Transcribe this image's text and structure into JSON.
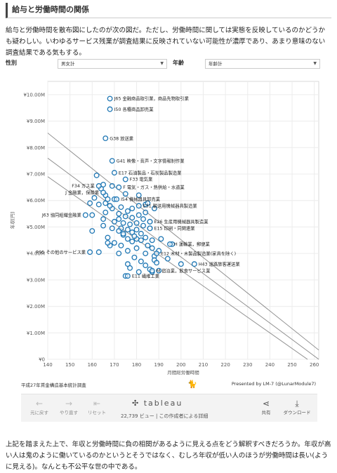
{
  "heading": "給与と労働時間の関係",
  "intro": "給与と労働時間を散布図にしたのが次の図だ。ただし、労働時間に関しては実態を反映しているのかどうかも疑わしい。いわゆるサービス残業が調査結果に反映されていない可能性が濃厚であり、あまり意味のない調査結果である気もする。",
  "filters": {
    "gender_label": "性別",
    "gender_value": "男女計",
    "age_label": "年齢",
    "age_value": "年齢計"
  },
  "chart_data": {
    "type": "scatter",
    "xlabel": "月間総労働時間",
    "ylabel": "年収[円]",
    "xlim": [
      140,
      262
    ],
    "ylim": [
      0,
      10.5
    ],
    "x_ticks": [
      "140",
      "150",
      "160",
      "170",
      "180",
      "190",
      "200",
      "210",
      "220",
      "230",
      "240",
      "250",
      "260"
    ],
    "y_ticks": [
      "¥0",
      "¥1.00M",
      "¥2.00M",
      "¥3.00M",
      "¥4.00M",
      "¥5.00M",
      "¥6.00M",
      "¥7.00M",
      "¥8.00M",
      "¥9.00M",
      "¥10.00M"
    ],
    "marker_color": "#1f77b4",
    "labeled_points": [
      {
        "label": "J65 金融商品取引業，商品先物取引業",
        "x": 168,
        "y": 9.85
      },
      {
        "label": "I50 各種商品卸売業",
        "x": 168,
        "y": 9.45
      },
      {
        "label": "G38 放送業",
        "x": 166,
        "y": 8.35
      },
      {
        "label": "G41 映像・音声・文字情報制作業",
        "x": 169,
        "y": 7.5
      },
      {
        "label": "E17 石油製品・石炭製品製造業",
        "x": 170,
        "y": 7.05
      },
      {
        "label": "F33 電気業",
        "x": 175,
        "y": 6.8
      },
      {
        "label": "F 電気・ガス・熱供給・水道業",
        "x": 172,
        "y": 6.5
      },
      {
        "label": "F34 ガス業",
        "x": 163,
        "y": 6.55
      },
      {
        "label": "J 金融業，保険業",
        "x": 165,
        "y": 6.3
      },
      {
        "label": "I54 機械器具卸売業",
        "x": 171,
        "y": 6.05
      },
      {
        "label": "E31 輸送用機械器具製造業",
        "x": 181,
        "y": 5.8
      },
      {
        "label": "J63 協同組織金融業",
        "x": 157,
        "y": 5.45
      },
      {
        "label": "E26 生産用機械器具製造業",
        "x": 186,
        "y": 5.2
      },
      {
        "label": "E15 印刷・同関連業",
        "x": 186,
        "y": 4.95
      },
      {
        "label": "H 運輸業，郵便業",
        "x": 195,
        "y": 4.35
      },
      {
        "label": "R95 その他のサービス業",
        "x": 159,
        "y": 4.05
      },
      {
        "label": "E12 木材・木製品製造業(家具を除く)",
        "x": 189,
        "y": 4.0
      },
      {
        "label": "H43 道路旅客運送業",
        "x": 206,
        "y": 3.6
      },
      {
        "label": "M 宿泊業，飲食サービス業",
        "x": 187,
        "y": 3.35
      },
      {
        "label": "E11 繊維工業",
        "x": 176,
        "y": 3.15
      }
    ],
    "points": [
      [
        162,
        6.95
      ],
      [
        164,
        6.45
      ],
      [
        165,
        6.6
      ],
      [
        166,
        6.2
      ],
      [
        167,
        6.05
      ],
      [
        170,
        6.05
      ],
      [
        161,
        6.1
      ],
      [
        159,
        5.9
      ],
      [
        163,
        5.85
      ],
      [
        169,
        5.7
      ],
      [
        173,
        5.75
      ],
      [
        176,
        5.6
      ],
      [
        178,
        5.7
      ],
      [
        166,
        5.55
      ],
      [
        160,
        5.45
      ],
      [
        172,
        5.5
      ],
      [
        181,
        5.45
      ],
      [
        184,
        5.55
      ],
      [
        175,
        5.4
      ],
      [
        178,
        5.35
      ],
      [
        183,
        5.3
      ],
      [
        165,
        5.3
      ],
      [
        172,
        5.3
      ],
      [
        186,
        5.2
      ],
      [
        170,
        5.2
      ],
      [
        174,
        5.15
      ],
      [
        177,
        5.1
      ],
      [
        180,
        5.15
      ],
      [
        183,
        5.05
      ],
      [
        165,
        5.05
      ],
      [
        169,
        4.95
      ],
      [
        173,
        4.95
      ],
      [
        176,
        4.9
      ],
      [
        180,
        4.9
      ],
      [
        186,
        4.95
      ],
      [
        160,
        4.85
      ],
      [
        172,
        4.85
      ],
      [
        178,
        4.8
      ],
      [
        182,
        4.75
      ],
      [
        174,
        4.7
      ],
      [
        184,
        4.6
      ],
      [
        167,
        4.6
      ],
      [
        180,
        4.55
      ],
      [
        176,
        4.55
      ],
      [
        182,
        4.5
      ],
      [
        187,
        4.5
      ],
      [
        170,
        4.4
      ],
      [
        178,
        4.45
      ],
      [
        168,
        4.3
      ],
      [
        173,
        4.3
      ],
      [
        185,
        4.3
      ],
      [
        196,
        4.35
      ],
      [
        180,
        4.2
      ],
      [
        190,
        4.1
      ],
      [
        184,
        4.0
      ],
      [
        176,
        4.1
      ],
      [
        163,
        4.05
      ],
      [
        172,
        4.0
      ],
      [
        188,
        3.9
      ],
      [
        179,
        3.85
      ],
      [
        182,
        3.7
      ],
      [
        188,
        3.75
      ],
      [
        194,
        3.8
      ],
      [
        176,
        3.6
      ],
      [
        184,
        3.55
      ],
      [
        189,
        3.65
      ],
      [
        200,
        3.6
      ],
      [
        177,
        3.45
      ],
      [
        186,
        3.4
      ],
      [
        181,
        3.3
      ],
      [
        175,
        3.15
      ],
      [
        187,
        3.3
      ],
      [
        190,
        3.35
      ],
      [
        169,
        6.55
      ],
      [
        175,
        6.25
      ],
      [
        181,
        6.2
      ],
      [
        166,
        5.9
      ],
      [
        184,
        5.85
      ],
      [
        188,
        5.7
      ],
      [
        185,
        5.9
      ],
      [
        179,
        4.65
      ],
      [
        167,
        4.4
      ],
      [
        191,
        4.55
      ],
      [
        187,
        4.2
      ],
      [
        174,
        4.75
      ],
      [
        168,
        5.8
      ]
    ],
    "trend_lines": [
      {
        "from": [
          140,
          7.6
        ],
        "to": [
          262,
          0.0
        ]
      },
      {
        "from": [
          140,
          8.55
        ],
        "to": [
          262,
          0.35
        ]
      },
      {
        "from": [
          140,
          6.9
        ],
        "to": [
          262,
          -0.3
        ]
      }
    ]
  },
  "credit": {
    "source": "平成27年賃金構造基本統計調査",
    "presented_by": "Presented by LM-7 (@LunarModule7)"
  },
  "toolbar": {
    "undo": "元に戻す",
    "redo": "やり直す",
    "reset": "リセット",
    "logo": "tableau",
    "views": "22,739 ビュー | この作成者による詳細",
    "share": "共有",
    "download": "ダウンロード"
  },
  "outro": "上記を踏まえた上で、年収と労働時間に負の相関があるように見える点をどう解釈すべきだろうか。年収が高い人は鬼のように働いているのかというとそうではなく、むしろ年収が低い人のほうが労働時間は長い(ように見える)。なんとも不公平な世の中である。"
}
